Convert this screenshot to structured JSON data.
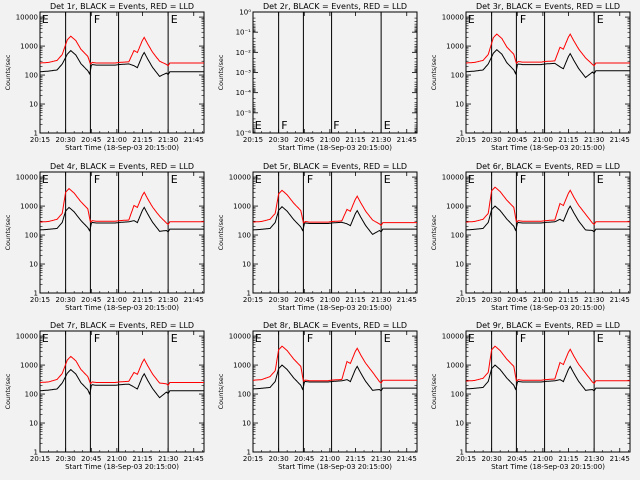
{
  "figure": {
    "background": "#f2f2f2"
  },
  "chart_data": {
    "type": "line",
    "shared": {
      "xlabel": "Start Time (18-Sep-03 20:15:00)",
      "ylabel": "Counts/sec",
      "x_tick_labels": [
        "20:15",
        "20:30",
        "20:45",
        "21:00",
        "21:15",
        "21:30",
        "21:45"
      ],
      "x_tick_minutes": [
        0,
        15,
        30,
        45,
        60,
        75,
        90
      ],
      "x_range_minutes": [
        0,
        96
      ],
      "y_scale": "log",
      "y_range": [
        1,
        15000
      ],
      "y_tick_labels": [
        "1",
        "10",
        "100",
        "1000",
        "10000"
      ],
      "vertical_lines_minutes": [
        15,
        29.5,
        46,
        75
      ],
      "series": [
        {
          "name": "Events",
          "color": "#000000"
        },
        {
          "name": "LLD",
          "color": "#ff0000"
        }
      ]
    },
    "panels": [
      {
        "title": "Det 1r, BLACK = Events, RED = LLD",
        "markers": [
          {
            "label": "E",
            "minute": 1
          },
          {
            "label": "F",
            "minute": 31.5
          },
          {
            "label": "E",
            "minute": 76.5
          }
        ],
        "events_profile": {
          "base": 130,
          "pre": 150,
          "peak1_min": 18,
          "peak1": 700,
          "trough": 100,
          "flat": 220,
          "peak2_min": 61,
          "peak2": 600,
          "tail": 130
        },
        "lld_profile": {
          "base": 260,
          "pre": 320,
          "peak1_min": 18,
          "peak1": 2200,
          "trough": 250,
          "flat": 260,
          "peak2_min": 61,
          "peak2": 2000,
          "tail": 260
        }
      },
      {
        "title": "Det 2r, BLACK = Events, RED = LLD",
        "y_scale": "log",
        "y_range": [
          1,
          1e-06
        ],
        "y_tick_labels": [
          "10⁻⁶",
          "10⁻⁵",
          "10⁻⁴",
          "10⁻³",
          "10⁻²",
          "10⁻¹",
          "10⁰"
        ],
        "markers": [
          {
            "label": "E",
            "minute": 1
          },
          {
            "label": "F",
            "minute": 16.5
          },
          {
            "label": "F",
            "minute": 47
          },
          {
            "label": "E",
            "minute": 76.5
          }
        ],
        "no_data": true
      },
      {
        "title": "Det 3r, BLACK = Events, RED = LLD",
        "markers": [
          {
            "label": "E",
            "minute": 1
          },
          {
            "label": "F",
            "minute": 31.5
          },
          {
            "label": "E",
            "minute": 76.5
          }
        ],
        "events_profile": {
          "base": 130,
          "pre": 150,
          "peak1_min": 18,
          "peak1": 750,
          "trough": 100,
          "flat": 230,
          "peak2_min": 61,
          "peak2": 550,
          "tail": 140
        },
        "lld_profile": {
          "base": 260,
          "pre": 320,
          "peak1_min": 18,
          "peak1": 2600,
          "trough": 260,
          "flat": 280,
          "peak2_min": 61,
          "peak2": 2600,
          "tail": 260
        }
      },
      {
        "title": "Det 4r, BLACK = Events, RED = LLD",
        "markers": [
          {
            "label": "E",
            "minute": 1
          },
          {
            "label": "F",
            "minute": 31.5
          },
          {
            "label": "E",
            "minute": 76.5
          }
        ],
        "events_profile": {
          "base": 150,
          "pre": 170,
          "peak1_min": 17,
          "peak1": 900,
          "trough": 130,
          "flat": 260,
          "peak2_min": 61,
          "peak2": 900,
          "tail": 160
        },
        "lld_profile": {
          "base": 280,
          "pre": 350,
          "peak1_min": 17,
          "peak1": 4000,
          "trough": 300,
          "flat": 300,
          "peak2_min": 61,
          "peak2": 3000,
          "tail": 290
        }
      },
      {
        "title": "Det 5r, BLACK = Events, RED = LLD",
        "markers": [
          {
            "label": "E",
            "minute": 1
          },
          {
            "label": "F",
            "minute": 31.5
          },
          {
            "label": "E",
            "minute": 76.5
          }
        ],
        "events_profile": {
          "base": 150,
          "pre": 170,
          "peak1_min": 17,
          "peak1": 950,
          "trough": 130,
          "flat": 250,
          "peak2_min": 61,
          "peak2": 700,
          "tail": 160
        },
        "lld_profile": {
          "base": 280,
          "pre": 350,
          "peak1_min": 17,
          "peak1": 3500,
          "trough": 280,
          "flat": 280,
          "peak2_min": 61,
          "peak2": 2200,
          "tail": 270
        }
      },
      {
        "title": "Det 6r, BLACK = Events, RED = LLD",
        "markers": [
          {
            "label": "E",
            "minute": 1
          },
          {
            "label": "F",
            "minute": 31.5
          },
          {
            "label": "E",
            "minute": 76.5
          }
        ],
        "events_profile": {
          "base": 150,
          "pre": 170,
          "peak1_min": 17,
          "peak1": 1000,
          "trough": 130,
          "flat": 260,
          "peak2_min": 61,
          "peak2": 1000,
          "tail": 160
        },
        "lld_profile": {
          "base": 280,
          "pre": 350,
          "peak1_min": 17,
          "peak1": 4500,
          "trough": 300,
          "flat": 300,
          "peak2_min": 61,
          "peak2": 3500,
          "tail": 290
        }
      },
      {
        "title": "Det 7r, BLACK = Events, RED = LLD",
        "markers": [
          {
            "label": "E",
            "minute": 1
          },
          {
            "label": "F",
            "minute": 31.5
          },
          {
            "label": "E",
            "minute": 76.5
          }
        ],
        "events_profile": {
          "base": 130,
          "pre": 150,
          "peak1_min": 18,
          "peak1": 700,
          "trough": 90,
          "flat": 200,
          "peak2_min": 61,
          "peak2": 500,
          "tail": 130
        },
        "lld_profile": {
          "base": 250,
          "pre": 320,
          "peak1_min": 18,
          "peak1": 2000,
          "trough": 240,
          "flat": 250,
          "peak2_min": 61,
          "peak2": 1600,
          "tail": 250
        }
      },
      {
        "title": "Det 8r, BLACK = Events, RED = LLD",
        "markers": [
          {
            "label": "E",
            "minute": 1
          },
          {
            "label": "F",
            "minute": 31.5
          },
          {
            "label": "E",
            "minute": 76.5
          }
        ],
        "events_profile": {
          "base": 150,
          "pre": 170,
          "peak1_min": 17,
          "peak1": 1000,
          "trough": 130,
          "flat": 260,
          "peak2_min": 61,
          "peak2": 900,
          "tail": 160
        },
        "lld_profile": {
          "base": 300,
          "pre": 400,
          "peak1_min": 17,
          "peak1": 4500,
          "trough": 300,
          "flat": 290,
          "peak2_min": 61,
          "peak2": 3800,
          "tail": 300
        }
      },
      {
        "title": "Det 9r, BLACK = Events, RED = LLD",
        "markers": [
          {
            "label": "E",
            "minute": 1
          },
          {
            "label": "F",
            "minute": 31.5
          },
          {
            "label": "E",
            "minute": 76.5
          }
        ],
        "events_profile": {
          "base": 150,
          "pre": 170,
          "peak1_min": 17,
          "peak1": 1000,
          "trough": 130,
          "flat": 260,
          "peak2_min": 61,
          "peak2": 900,
          "tail": 160
        },
        "lld_profile": {
          "base": 280,
          "pre": 350,
          "peak1_min": 17,
          "peak1": 4500,
          "trough": 300,
          "flat": 300,
          "peak2_min": 61,
          "peak2": 3500,
          "tail": 290
        }
      }
    ]
  }
}
